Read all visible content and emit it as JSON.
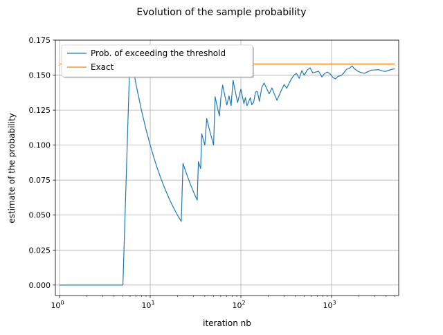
{
  "chart_data": {
    "type": "line",
    "title": "Evolution of the sample probability",
    "xlabel": "iteration nb",
    "ylabel": "estimate of the probability",
    "x_scale": "log",
    "xlim": [
      0.9,
      5500
    ],
    "ylim": [
      -0.0075,
      0.175
    ],
    "grid": true,
    "legend_position": "top-left",
    "x_major_ticks": [
      1,
      10,
      100,
      1000
    ],
    "x_tick_labels": [
      {
        "base": "10",
        "exp": "0"
      },
      {
        "base": "10",
        "exp": "1"
      },
      {
        "base": "10",
        "exp": "2"
      },
      {
        "base": "10",
        "exp": "3"
      }
    ],
    "y_ticks": [
      0.0,
      0.025,
      0.05,
      0.075,
      0.1,
      0.125,
      0.15,
      0.175
    ],
    "y_tick_labels": [
      "0.000",
      "0.025",
      "0.050",
      "0.075",
      "0.100",
      "0.125",
      "0.150",
      "0.175"
    ],
    "series": [
      {
        "name": "Prob. of exceeding the threshold",
        "color": "#1f77b4",
        "x": [
          1,
          2,
          3,
          4,
          5,
          6,
          7,
          8,
          9,
          10,
          11,
          12,
          13,
          14,
          15,
          16,
          17,
          18,
          19,
          20,
          21,
          22,
          23,
          24,
          25,
          26,
          27,
          28,
          29,
          30,
          31,
          32,
          33,
          34,
          35,
          36,
          37,
          38,
          39,
          40,
          42,
          44,
          46,
          48,
          50,
          52,
          54,
          56,
          58,
          60,
          63,
          66,
          70,
          74,
          78,
          82,
          85,
          88,
          92,
          96,
          100,
          104,
          108,
          112,
          117,
          122,
          127,
          132,
          138,
          145,
          152,
          160,
          170,
          180,
          192,
          205,
          220,
          235,
          250,
          265,
          280,
          300,
          320,
          340,
          360,
          385,
          410,
          440,
          470,
          500,
          540,
          580,
          620,
          670,
          720,
          780,
          840,
          900,
          960,
          1030,
          1100,
          1180,
          1270,
          1360,
          1460,
          1570,
          1680,
          1800,
          1950,
          2100,
          2300,
          2500,
          2750,
          3000,
          3300,
          3600,
          3900,
          4200,
          4600,
          5000
        ],
        "values": [
          0.0,
          0.0,
          0.0,
          0.0,
          0.0,
          0.1667,
          0.1429,
          0.125,
          0.1111,
          0.1,
          0.0909,
          0.0833,
          0.0769,
          0.0714,
          0.0667,
          0.0625,
          0.0588,
          0.0556,
          0.0526,
          0.05,
          0.0476,
          0.0455,
          0.087,
          0.0833,
          0.08,
          0.0769,
          0.0741,
          0.0714,
          0.069,
          0.0667,
          0.0645,
          0.0625,
          0.0606,
          0.0882,
          0.0857,
          0.0833,
          0.1081,
          0.1053,
          0.1026,
          0.1,
          0.119,
          0.1136,
          0.1087,
          0.1042,
          0.1,
          0.1346,
          0.1296,
          0.125,
          0.1207,
          0.1333,
          0.1429,
          0.1364,
          0.1286,
          0.1351,
          0.1282,
          0.1463,
          0.1412,
          0.1364,
          0.1304,
          0.1354,
          0.14,
          0.1346,
          0.1296,
          0.1339,
          0.1282,
          0.1311,
          0.1339,
          0.1288,
          0.1304,
          0.1379,
          0.1382,
          0.1313,
          0.1412,
          0.1444,
          0.1406,
          0.1366,
          0.1409,
          0.1362,
          0.132,
          0.1358,
          0.1393,
          0.1433,
          0.1406,
          0.1441,
          0.1472,
          0.15,
          0.1512,
          0.1477,
          0.1532,
          0.15,
          0.1537,
          0.1552,
          0.1516,
          0.1522,
          0.1528,
          0.1487,
          0.1512,
          0.1522,
          0.151,
          0.1485,
          0.1473,
          0.1492,
          0.1496,
          0.1515,
          0.1541,
          0.1548,
          0.1565,
          0.1544,
          0.1528,
          0.1519,
          0.1513,
          0.1524,
          0.1536,
          0.1537,
          0.1539,
          0.1531,
          0.1526,
          0.1533,
          0.1541,
          0.1545
        ]
      },
      {
        "name": "Exact",
        "color": "#ff7f0e",
        "x": [
          1,
          5000
        ],
        "values": [
          0.158,
          0.158
        ]
      }
    ]
  }
}
